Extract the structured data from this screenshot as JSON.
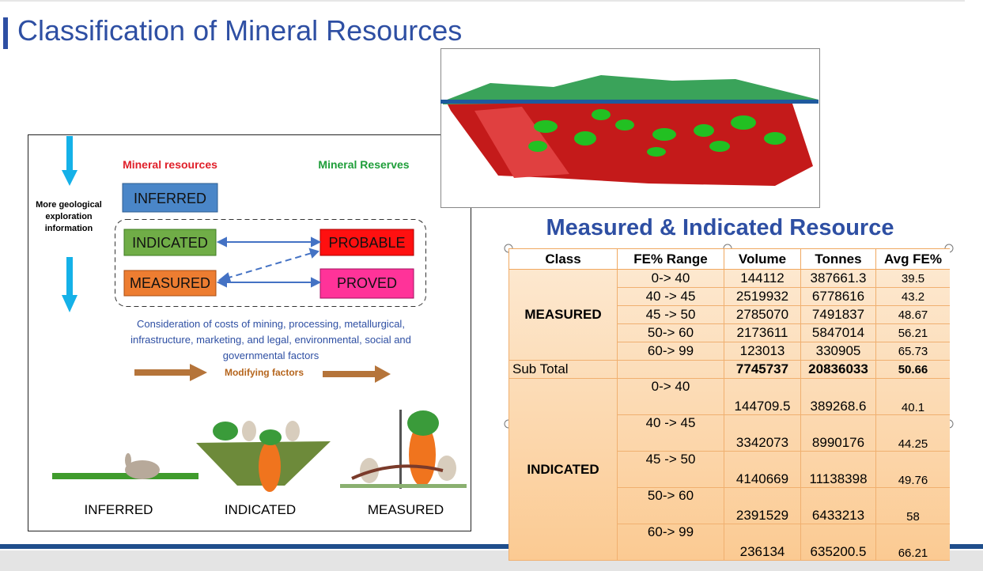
{
  "slide": {
    "title": "Classification of Mineral Resources",
    "diagram": {
      "side_note": "More geological exploration information",
      "resources_heading": "Mineral resources",
      "reserves_heading": "Mineral Reserves",
      "boxes": {
        "inferred": "INFERRED",
        "indicated": "INDICATED",
        "measured": "MEASURED",
        "probable": "PROBABLE",
        "proved": "PROVED"
      },
      "consideration": "Consideration of costs of mining, processing, metallurgical, infrastructure, marketing, and legal, environmental, social and governmental factors",
      "modifying": "Modifying factors",
      "stages": [
        "INFERRED",
        "INDICATED",
        "MEASURED"
      ]
    },
    "table_title": "Measured & Indicated Resource",
    "table": {
      "header": [
        "Class",
        "FE% Range",
        "Volume",
        "Tonnes",
        "Avg FE%"
      ],
      "groups": [
        {
          "class": "MEASURED",
          "rows": [
            [
              "0-> 40",
              144112,
              387661.3,
              39.5
            ],
            [
              "40 -> 45",
              2519932,
              6778616,
              43.2
            ],
            [
              "45 -> 50",
              2785070,
              7491837,
              48.67
            ],
            [
              "50-> 60",
              2173611,
              5847014,
              56.21
            ],
            [
              "60-> 99",
              123013,
              330905,
              65.73
            ]
          ],
          "subtotal": {
            "label": "Sub Total",
            "volume": 7745737,
            "tonnes": 20836033,
            "avg": 50.66
          }
        },
        {
          "class": "INDICATED",
          "rows": [
            [
              "0-> 40",
              144709.5,
              389268.6,
              40.1
            ],
            [
              "40 -> 45",
              3342073,
              8990176,
              44.25
            ],
            [
              "45 -> 50",
              4140669,
              11138398,
              49.76
            ],
            [
              "50-> 60",
              2391529,
              6433213,
              58
            ],
            [
              "60-> 99",
              236134,
              635200.5,
              66.21
            ]
          ]
        }
      ]
    }
  }
}
